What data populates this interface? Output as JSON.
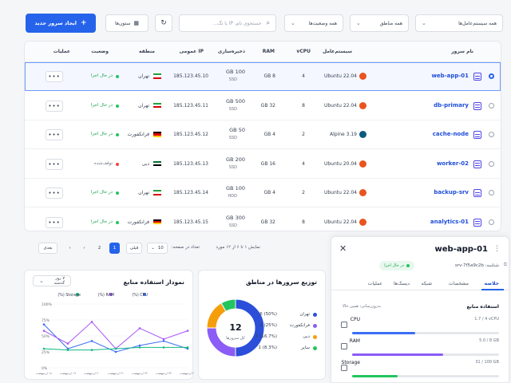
{
  "toolbar": {
    "filter_os": "همه سیستم‌عامل‌ها",
    "filter_region": "همه مناطق",
    "filter_status": "همه وضعیت‌ها",
    "search_placeholder": "جستجوی نام، IP یا تگ...",
    "columns_label": "ستون‌ها",
    "create_label": "ایجاد سرور جدید"
  },
  "table": {
    "headers": {
      "name": "نام سرور",
      "os": "سیستم‌عامل",
      "vcpu": "vCPU",
      "ram": "RAM",
      "storage": "ذخیره‌سازی",
      "ip": "IP عمومی",
      "region": "منطقه",
      "status": "وضعیت",
      "actions": "عملیات"
    },
    "rows": [
      {
        "name": "web-app-01",
        "os": "Ubuntu 22.04",
        "os_color": "#e95420",
        "vcpu": "4",
        "ram": "8 GB",
        "storage": "100 GB",
        "storage_type": "SSD",
        "ip": "185.123.45.10",
        "region": "تهران",
        "flag": "ir",
        "status": "در حال اجرا",
        "status_color": "#22c55e",
        "selected": true
      },
      {
        "name": "db-primary",
        "os": "Ubuntu 22.04",
        "os_color": "#e95420",
        "vcpu": "8",
        "ram": "32 GB",
        "storage": "500 GB",
        "storage_type": "SSD",
        "ip": "185.123.45.11",
        "region": "تهران",
        "flag": "ir",
        "status": "در حال اجرا",
        "status_color": "#22c55e",
        "selected": false
      },
      {
        "name": "cache-node",
        "os": "Alpine 3.19",
        "os_color": "#0d597f",
        "vcpu": "2",
        "ram": "4 GB",
        "storage": "50 GB",
        "storage_type": "SSD",
        "ip": "185.123.45.12",
        "region": "فرانکفورت",
        "flag": "de",
        "status": "در حال اجرا",
        "status_color": "#22c55e",
        "selected": false
      },
      {
        "name": "worker-02",
        "os": "Ubuntu 20.04",
        "os_color": "#e95420",
        "vcpu": "4",
        "ram": "16 GB",
        "storage": "200 GB",
        "storage_type": "SSD",
        "ip": "185.123.45.13",
        "region": "دبی",
        "flag": "ae",
        "status": "توقف‌شده",
        "status_color": "#ef4444",
        "selected": false
      },
      {
        "name": "backup-srv",
        "os": "Ubuntu 22.04",
        "os_color": "#e95420",
        "vcpu": "2",
        "ram": "4 GB",
        "storage": "100 GB",
        "storage_type": "HDD",
        "ip": "185.123.45.14",
        "region": "تهران",
        "flag": "ir",
        "status": "در حال اجرا",
        "status_color": "#22c55e",
        "selected": false
      },
      {
        "name": "analytics-01",
        "os": "Ubuntu 22.04",
        "os_color": "#e95420",
        "vcpu": "8",
        "ram": "32 GB",
        "storage": "300 GB",
        "storage_type": "SSD",
        "ip": "185.123.45.15",
        "region": "فرانکفورت",
        "flag": "de",
        "status": "در حال اجرا",
        "status_color": "#22c55e",
        "selected": false
      }
    ]
  },
  "pagination": {
    "summary": "نمایش ۱ تا ۶ از ۱۲ مورد",
    "per_page_label": "تعداد در صفحه:",
    "per_page_value": "10",
    "prev": "قبلی",
    "next": "بعدی",
    "pages": [
      "1",
      "2"
    ],
    "current": "1"
  },
  "distribution": {
    "title": "توزیع سرورها در مناطق",
    "total": "12",
    "total_label": "کل سرورها",
    "legend": [
      {
        "label": "تهران",
        "value": "6 (50%)",
        "color": "#2b4fd8"
      },
      {
        "label": "فرانکفورت",
        "value": "3 (25%)",
        "color": "#8b5cf6"
      },
      {
        "label": "دبی",
        "value": "2 (16.7%)",
        "color": "#f59e0b"
      },
      {
        "label": "سایر",
        "value": "1 (8.3%)",
        "color": "#22c55e"
      }
    ]
  },
  "usage_chart": {
    "title": "نمودار استفاده منابع",
    "range": "۷ روز گذشته",
    "legend": [
      "CPU (%)",
      "RAM (%)",
      "Storage (%)"
    ]
  },
  "chart_data": {
    "type": "line",
    "x": [
      "۱۸ اردیبهشت",
      "۱۹ اردیبهشت",
      "۲۰ اردیبهشت",
      "۲۱ اردیبهشت",
      "۲۲ اردیبهشت",
      "۲۳ اردیبهشت",
      "۲۴ اردیبهشت"
    ],
    "yticks": [
      "0%",
      "25%",
      "50%",
      "75%",
      "100%"
    ],
    "ylim": [
      0,
      100
    ],
    "series": [
      {
        "name": "CPU (%)",
        "color": "#3b6ef5",
        "values": [
          68,
          30,
          42,
          25,
          35,
          42,
          30
        ]
      },
      {
        "name": "RAM (%)",
        "color": "#a855f7",
        "values": [
          58,
          38,
          72,
          30,
          62,
          45,
          58
        ]
      },
      {
        "name": "Storage (%)",
        "color": "#10b981",
        "values": [
          30,
          28,
          28,
          30,
          32,
          32,
          32
        ]
      }
    ]
  },
  "detail": {
    "name": "web-app-01",
    "status": "در حال اجرا",
    "id": "شناسه: srv-7f5a9c2b",
    "tabs": [
      "خلاصه",
      "مشخصات",
      "شبکه",
      "دیسک‌ها",
      "عملیات"
    ],
    "section_title": "استفاده منابع",
    "updated": "به‌روزرسانی: همین حالا",
    "resources": [
      {
        "label": "CPU",
        "value": "1.7 / 4 vCPU",
        "fraction": 0.43,
        "color": "#3b6ef5"
      },
      {
        "label": "RAM",
        "value": "5.0 / 8 GB",
        "fraction": 0.62,
        "color": "#8b5cf6"
      },
      {
        "label": "Storage",
        "value": "31 / 100 GB",
        "fraction": 0.31,
        "color": "#22c55e"
      }
    ]
  }
}
